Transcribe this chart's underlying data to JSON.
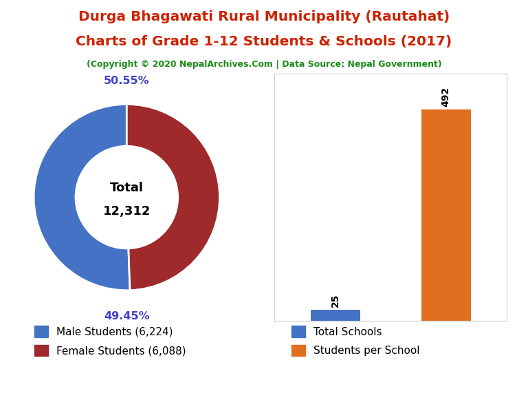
{
  "title_line1": "Durga Bhagawati Rural Municipality (Rautahat)",
  "title_line2": "Charts of Grade 1-12 Students & Schools (2017)",
  "subtitle": "(Copyright © 2020 NepalArchives.Com | Data Source: Nepal Government)",
  "title_color": "#cc2200",
  "subtitle_color": "#1a8c1a",
  "male_students": 6224,
  "female_students": 6088,
  "total_students": 12312,
  "male_pct": "50.55%",
  "female_pct": "49.45%",
  "donut_colors": [
    "#4472c4",
    "#9e2a2b"
  ],
  "total_schools": 25,
  "students_per_school": 492,
  "bar_colors": [
    "#4472c4",
    "#e07020"
  ],
  "bar_labels": [
    "Total Schools",
    "Students per School"
  ],
  "legend_male": "Male Students (6,224)",
  "legend_female": "Female Students (6,088)",
  "background_color": "#ffffff",
  "pct_color": "#4040cc"
}
